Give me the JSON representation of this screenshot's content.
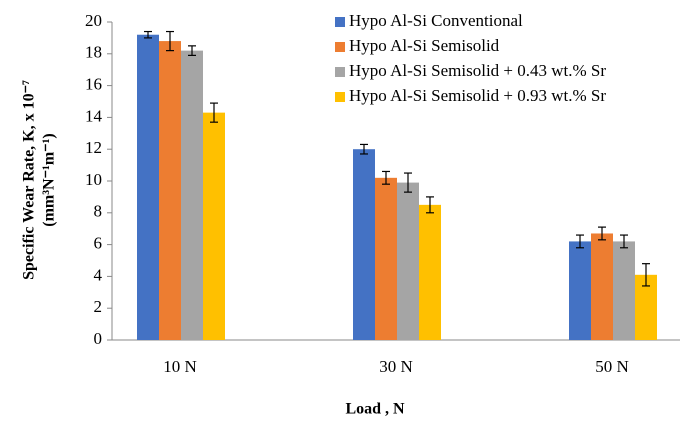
{
  "chart_data": {
    "type": "bar",
    "y_label": [
      "Specific Wear Rate, K, x 10⁻⁷",
      "(mm³N⁻¹m⁻¹)"
    ],
    "x_label": "Load , N",
    "categories": [
      "10 N",
      "30 N",
      "50 N"
    ],
    "series": [
      {
        "name": "Hypo Al-Si Conventional",
        "color": "#4472c4",
        "values": [
          19.2,
          12.0,
          6.2
        ],
        "errors": [
          0.2,
          0.3,
          0.4
        ]
      },
      {
        "name": "Hypo Al-Si Semisolid",
        "color": "#ed7d31",
        "values": [
          18.8,
          10.2,
          6.7
        ],
        "errors": [
          0.6,
          0.4,
          0.4
        ]
      },
      {
        "name": "Hypo Al-Si Semisolid + 0.43 wt.% Sr",
        "color": "#a5a5a5",
        "values": [
          18.2,
          9.9,
          6.2
        ],
        "errors": [
          0.3,
          0.6,
          0.4
        ]
      },
      {
        "name": "Hypo Al-Si Semisolid + 0.93 wt.% Sr",
        "color": "#ffc000",
        "values": [
          14.3,
          8.5,
          4.1
        ],
        "errors": [
          0.6,
          0.5,
          0.7
        ]
      }
    ],
    "ylim": [
      0,
      20
    ],
    "yticks": [
      0,
      2,
      4,
      6,
      8,
      10,
      12,
      14,
      16,
      18,
      20
    ],
    "grid": false,
    "legend": "top-right"
  }
}
